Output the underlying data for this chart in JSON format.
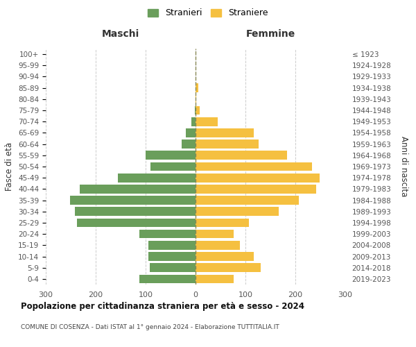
{
  "age_groups": [
    "100+",
    "95-99",
    "90-94",
    "85-89",
    "80-84",
    "75-79",
    "70-74",
    "65-69",
    "60-64",
    "55-59",
    "50-54",
    "45-49",
    "40-44",
    "35-39",
    "30-34",
    "25-29",
    "20-24",
    "15-19",
    "10-14",
    "5-9",
    "0-4"
  ],
  "birth_years": [
    "≤ 1923",
    "1924-1928",
    "1929-1933",
    "1934-1938",
    "1939-1943",
    "1944-1948",
    "1949-1953",
    "1954-1958",
    "1959-1963",
    "1964-1968",
    "1969-1973",
    "1974-1978",
    "1979-1983",
    "1984-1988",
    "1989-1993",
    "1994-1998",
    "1999-2003",
    "2004-2008",
    "2009-2013",
    "2014-2018",
    "2019-2023"
  ],
  "males": [
    0,
    0,
    0,
    0,
    0,
    2,
    8,
    20,
    28,
    100,
    90,
    155,
    232,
    252,
    242,
    238,
    112,
    95,
    95,
    92,
    112
  ],
  "females": [
    0,
    0,
    0,
    6,
    2,
    8,
    44,
    116,
    127,
    183,
    233,
    249,
    241,
    207,
    167,
    107,
    76,
    89,
    116,
    130,
    76
  ],
  "male_color": "#6a9e5b",
  "female_color": "#f5c040",
  "bg_color": "#ffffff",
  "grid_color": "#cccccc",
  "title": "Popolazione per cittadinanza straniera per età e sesso - 2024",
  "subtitle": "COMUNE DI COSENZA - Dati ISTAT al 1° gennaio 2024 - Elaborazione TUTTITALIA.IT",
  "ylabel_left": "Fasce di età",
  "ylabel_right": "Anni di nascita",
  "xlabel_left": "Maschi",
  "xlabel_right": "Femmine",
  "legend_males": "Stranieri",
  "legend_females": "Straniere",
  "xlim": 300,
  "xticks": [
    -300,
    -200,
    -100,
    0,
    100,
    200,
    300
  ],
  "xtick_labels": [
    "300",
    "200",
    "100",
    "0",
    "100",
    "200",
    "300"
  ]
}
